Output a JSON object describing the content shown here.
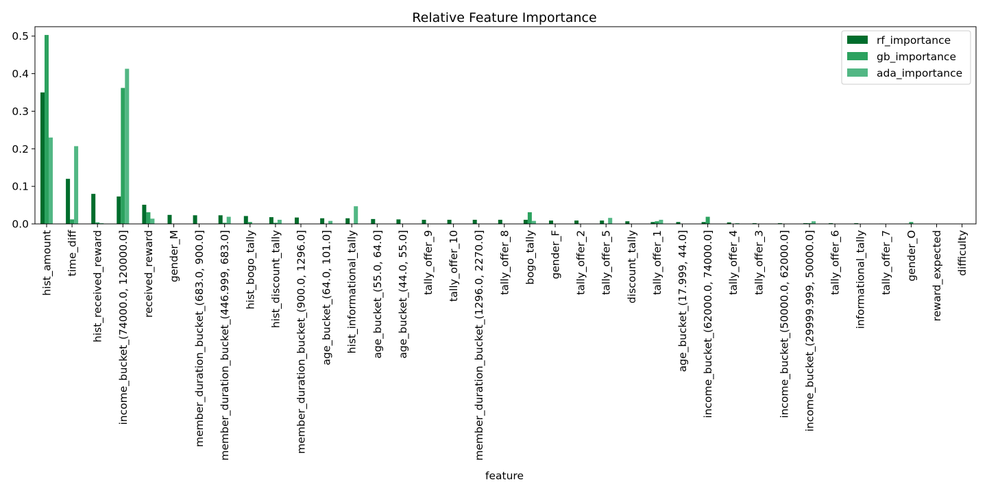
{
  "chart_data": {
    "type": "bar",
    "title": "Relative Feature Importance",
    "xlabel": "feature",
    "ylabel": "",
    "ylim": [
      0,
      0.525
    ],
    "yticks": [
      0.0,
      0.1,
      0.2,
      0.3,
      0.4,
      0.5
    ],
    "ytick_labels": [
      "0.0",
      "0.1",
      "0.2",
      "0.3",
      "0.4",
      "0.5"
    ],
    "grid": false,
    "legend_position": "top-right",
    "categories": [
      "hist_amount",
      "time_diff",
      "hist_received_reward",
      "income_bucket_(74000.0, 120000.0]",
      "received_reward",
      "gender_M",
      "member_duration_bucket_(683.0, 900.0]",
      "member_duration_bucket_(446.999, 683.0]",
      "hist_bogo_tally",
      "hist_discount_tally",
      "member_duration_bucket_(900.0, 1296.0]",
      "age_bucket_(64.0, 101.0]",
      "hist_informational_tally",
      "age_bucket_(55.0, 64.0]",
      "age_bucket_(44.0, 55.0]",
      "tally_offer_9",
      "tally_offer_10",
      "member_duration_bucket_(1296.0, 2270.0]",
      "tally_offer_8",
      "bogo_tally",
      "gender_F",
      "tally_offer_2",
      "tally_offer_5",
      "discount_tally",
      "tally_offer_1",
      "age_bucket_(17.999, 44.0]",
      "income_bucket_(62000.0, 74000.0]",
      "tally_offer_4",
      "tally_offer_3",
      "income_bucket_(50000.0, 62000.0]",
      "income_bucket_(29999.999, 50000.0]",
      "tally_offer_6",
      "informational_tally",
      "tally_offer_7",
      "gender_O",
      "reward_expected",
      "difficulty"
    ],
    "series": [
      {
        "name": "rf_importance",
        "color": "#006d2c",
        "values": [
          0.35,
          0.12,
          0.08,
          0.073,
          0.051,
          0.024,
          0.023,
          0.023,
          0.021,
          0.018,
          0.017,
          0.015,
          0.015,
          0.013,
          0.012,
          0.011,
          0.011,
          0.011,
          0.011,
          0.011,
          0.009,
          0.009,
          0.009,
          0.007,
          0.005,
          0.005,
          0.005,
          0.004,
          0.002,
          0.002,
          0.002,
          0.002,
          0.002,
          0.001,
          0.001,
          0.0,
          0.0
        ]
      },
      {
        "name": "gb_importance",
        "color": "#2ca25f",
        "values": [
          0.503,
          0.012,
          0.004,
          0.362,
          0.031,
          0.0,
          0.0,
          0.003,
          0.005,
          0.003,
          0.0,
          0.0,
          0.0,
          0.0,
          0.0,
          0.0,
          0.0,
          0.0,
          0.0,
          0.031,
          0.0,
          0.0,
          0.0,
          0.0,
          0.007,
          0.0,
          0.019,
          0.0,
          0.0,
          0.0,
          0.002,
          0.0,
          0.0,
          0.0,
          0.005,
          0.0,
          0.0
        ]
      },
      {
        "name": "ada_importance",
        "color": "#52b784",
        "values": [
          0.23,
          0.207,
          0.002,
          0.413,
          0.014,
          0.0,
          0.0,
          0.019,
          0.0,
          0.011,
          0.0,
          0.008,
          0.047,
          0.0,
          0.0,
          0.0,
          0.0,
          0.0,
          0.0,
          0.008,
          0.0,
          0.0,
          0.016,
          0.0,
          0.011,
          0.0,
          0.0,
          0.002,
          0.0,
          0.0,
          0.007,
          0.0,
          0.0,
          0.0,
          0.0,
          0.0,
          0.0
        ]
      }
    ]
  }
}
